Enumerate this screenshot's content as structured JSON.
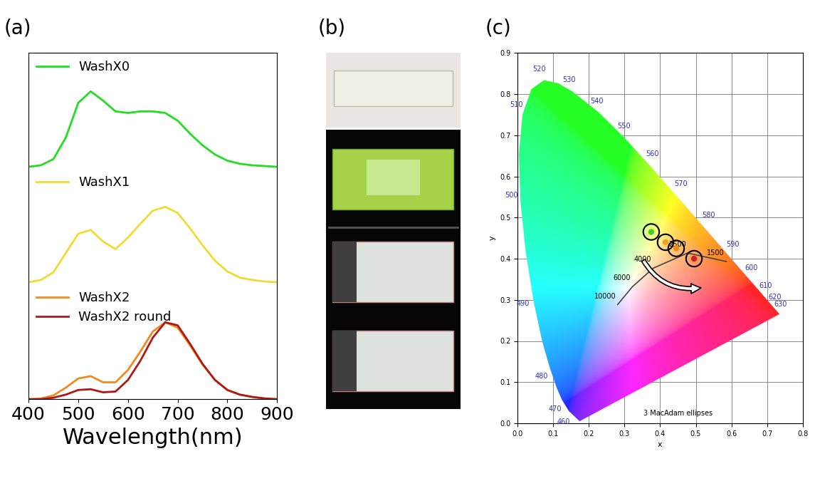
{
  "chart_data": [
    {
      "type": "line",
      "panel_label": "(a)",
      "x_label": "Wavelength(nm)",
      "x": [
        400,
        425,
        450,
        475,
        500,
        525,
        550,
        575,
        600,
        625,
        650,
        675,
        700,
        725,
        750,
        775,
        800,
        825,
        850,
        875,
        900
      ],
      "xlim": [
        400,
        900
      ],
      "xticks": [
        400,
        500,
        600,
        700,
        800,
        900
      ],
      "ylim": [
        0,
        1.5
      ],
      "tick_labels": "x",
      "legend": "upper left",
      "panels": [
        {
          "series": [
            {
              "name": "WashX0",
              "color": "#22dd22",
              "values": [
                0.02,
                0.04,
                0.12,
                0.4,
                0.85,
                1.0,
                0.88,
                0.74,
                0.72,
                0.74,
                0.74,
                0.72,
                0.62,
                0.45,
                0.3,
                0.18,
                0.1,
                0.06,
                0.04,
                0.03,
                0.02
              ]
            }
          ]
        },
        {
          "series": [
            {
              "name": "WashX1",
              "color": "#f0dc30",
              "values": [
                0.02,
                0.05,
                0.15,
                0.4,
                0.65,
                0.7,
                0.55,
                0.45,
                0.6,
                0.78,
                0.95,
                1.0,
                0.92,
                0.72,
                0.5,
                0.3,
                0.16,
                0.08,
                0.05,
                0.03,
                0.02
              ]
            }
          ]
        },
        {
          "series": [
            {
              "name": "WashX2",
              "color": "#f08a1e",
              "values": [
                0.0,
                0.01,
                0.05,
                0.15,
                0.27,
                0.3,
                0.22,
                0.22,
                0.38,
                0.62,
                0.88,
                1.0,
                0.93,
                0.7,
                0.45,
                0.25,
                0.12,
                0.06,
                0.03,
                0.01,
                0.0
              ]
            },
            {
              "name": "WashX2 round",
              "color": "#b01818",
              "values": [
                0.0,
                0.0,
                0.02,
                0.06,
                0.12,
                0.13,
                0.09,
                0.1,
                0.25,
                0.5,
                0.8,
                1.0,
                0.96,
                0.72,
                0.46,
                0.25,
                0.12,
                0.06,
                0.03,
                0.01,
                0.0
              ]
            }
          ]
        }
      ]
    },
    {
      "type": "chromaticity",
      "panel_label": "(c)",
      "x_label": "x",
      "y_label": "y",
      "xlim": [
        0.0,
        0.8
      ],
      "ylim": [
        0.0,
        0.9
      ],
      "xticks": [
        0.0,
        0.1,
        0.2,
        0.3,
        0.4,
        0.5,
        0.6,
        0.7,
        0.8
      ],
      "yticks": [
        0.0,
        0.1,
        0.2,
        0.3,
        0.4,
        0.5,
        0.6,
        0.7,
        0.8,
        0.9
      ],
      "grid": true,
      "spectral_locus": {
        "nm": [
          380,
          460,
          470,
          475,
          480,
          485,
          490,
          495,
          500,
          505,
          510,
          515,
          520,
          525,
          530,
          540,
          550,
          560,
          570,
          580,
          590,
          600,
          610,
          620,
          630,
          640,
          700
        ],
        "x": [
          0.1741,
          0.144,
          0.1241,
          0.1096,
          0.0913,
          0.0687,
          0.0454,
          0.0235,
          0.0082,
          0.0039,
          0.0139,
          0.0389,
          0.0743,
          0.1142,
          0.1547,
          0.2296,
          0.3016,
          0.3731,
          0.4441,
          0.5125,
          0.5752,
          0.627,
          0.6658,
          0.6915,
          0.7079,
          0.719,
          0.7347
        ],
        "y": [
          0.005,
          0.0297,
          0.0578,
          0.0868,
          0.1327,
          0.2007,
          0.295,
          0.4127,
          0.5384,
          0.6548,
          0.7502,
          0.812,
          0.8338,
          0.8262,
          0.8059,
          0.7543,
          0.6923,
          0.6245,
          0.5547,
          0.4866,
          0.4242,
          0.3725,
          0.334,
          0.3083,
          0.292,
          0.2809,
          0.2653
        ]
      },
      "wavelength_labels": [
        460,
        470,
        480,
        490,
        500,
        510,
        520,
        530,
        540,
        550,
        560,
        570,
        580,
        590,
        600,
        610,
        620,
        630
      ],
      "planckian_locus": {
        "T": [
          10000,
          6000,
          4000,
          2500,
          1500
        ],
        "x": [
          0.2807,
          0.3221,
          0.3805,
          0.477,
          0.5857
        ],
        "y": [
          0.2884,
          0.3318,
          0.3768,
          0.4137,
          0.3931
        ]
      },
      "annotation": "3 MacAdam ellipses",
      "points": {
        "x": [
          0.375,
          0.415,
          0.445,
          0.495
        ],
        "y": [
          0.465,
          0.44,
          0.425,
          0.4
        ],
        "colors": [
          "#44cc22",
          "#f0a020",
          "#f08a1e",
          "#d02020"
        ]
      }
    }
  ],
  "photo": {
    "panel_label": "(b)"
  }
}
